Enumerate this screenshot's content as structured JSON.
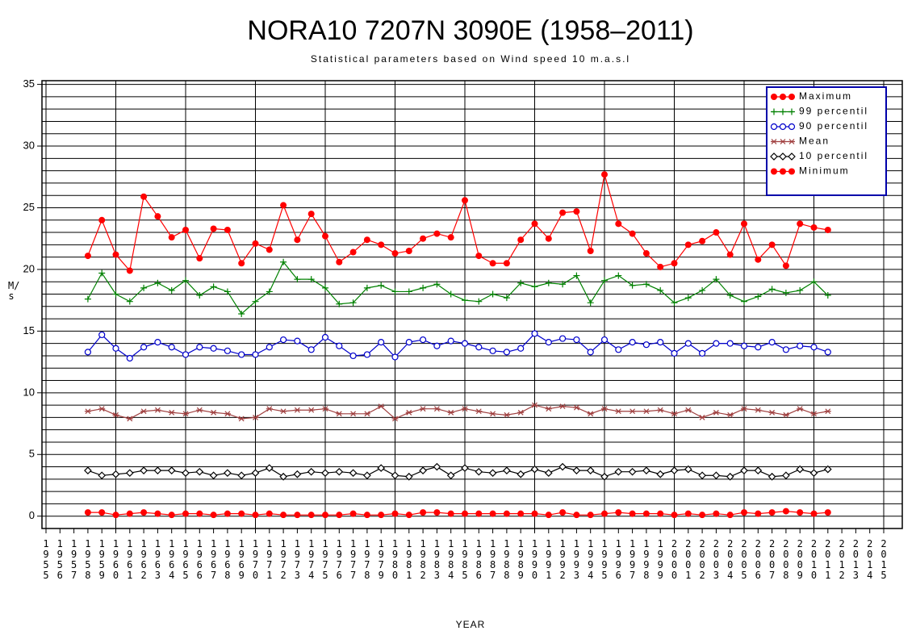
{
  "chart_data": {
    "type": "line",
    "title": "NORA10 7207N 3090E (1958–2011)",
    "subtitle": "Statistical parameters based on Wind speed 10 m.a.s.l",
    "x_label": "YEAR",
    "y_label": "M/s",
    "categories": [
      "1955",
      "1956",
      "1957",
      "1958",
      "1959",
      "1960",
      "1961",
      "1962",
      "1963",
      "1964",
      "1965",
      "1966",
      "1967",
      "1968",
      "1969",
      "1970",
      "1971",
      "1972",
      "1973",
      "1974",
      "1975",
      "1976",
      "1977",
      "1978",
      "1979",
      "1980",
      "1981",
      "1982",
      "1983",
      "1984",
      "1985",
      "1986",
      "1987",
      "1988",
      "1989",
      "1990",
      "1991",
      "1992",
      "1993",
      "1994",
      "1995",
      "1996",
      "1997",
      "1998",
      "1999",
      "2000",
      "2001",
      "2002",
      "2003",
      "2004",
      "2005",
      "2006",
      "2007",
      "2008",
      "2009",
      "2010",
      "2011",
      "2012",
      "2013",
      "2014",
      "2015"
    ],
    "ylim": [
      -1,
      35.3
    ],
    "yticks": [
      0,
      5,
      10,
      15,
      20,
      25,
      30,
      35
    ],
    "ygrid": [
      0,
      1,
      2,
      3,
      4,
      5,
      6,
      7,
      8,
      9,
      10,
      11,
      12,
      13,
      14,
      15,
      16,
      17,
      18,
      19,
      20,
      21,
      22,
      23,
      24,
      25,
      26,
      27,
      28,
      29,
      30,
      31,
      32,
      33,
      34,
      35
    ],
    "grid": true,
    "legend": "upper right",
    "series": [
      {
        "name": "Maximum",
        "color": "#ff0000",
        "marker": "dot",
        "values": [
          null,
          null,
          null,
          21.1,
          24.0,
          21.2,
          19.9,
          25.9,
          24.3,
          22.6,
          23.2,
          20.9,
          23.3,
          23.2,
          20.5,
          22.1,
          21.6,
          25.2,
          22.4,
          24.5,
          22.7,
          20.6,
          21.4,
          22.4,
          22.0,
          21.3,
          21.5,
          22.5,
          22.9,
          22.6,
          25.6,
          21.1,
          20.5,
          20.5,
          22.4,
          23.7,
          22.5,
          24.6,
          24.7,
          21.5,
          27.7,
          23.7,
          22.9,
          21.3,
          20.2,
          20.5,
          22.0,
          22.3,
          23.0,
          21.2,
          23.7,
          20.8,
          22.0,
          20.3,
          23.7,
          23.4,
          23.2,
          null,
          null,
          null,
          null
        ]
      },
      {
        "name": "99 percentil",
        "color": "#008000",
        "marker": "plus",
        "values": [
          null,
          null,
          null,
          17.6,
          19.7,
          18.0,
          17.4,
          18.5,
          18.9,
          18.3,
          19.1,
          17.9,
          18.6,
          18.2,
          16.4,
          17.4,
          18.2,
          20.6,
          19.2,
          19.2,
          18.5,
          17.2,
          17.3,
          18.5,
          18.7,
          18.2,
          18.2,
          18.5,
          18.8,
          18.0,
          17.5,
          17.4,
          18.0,
          17.7,
          18.9,
          18.6,
          18.9,
          18.8,
          19.5,
          17.3,
          19.1,
          19.5,
          18.7,
          18.8,
          18.3,
          17.3,
          17.7,
          18.3,
          19.2,
          17.9,
          17.4,
          17.8,
          18.4,
          18.1,
          18.3,
          19.0,
          17.9,
          null,
          null,
          null,
          null
        ]
      },
      {
        "name": "90 percentil",
        "color": "#0000cc",
        "marker": "ring",
        "values": [
          null,
          null,
          null,
          13.3,
          14.7,
          13.6,
          12.8,
          13.7,
          14.1,
          13.7,
          13.1,
          13.7,
          13.6,
          13.4,
          13.1,
          13.1,
          13.7,
          14.3,
          14.2,
          13.5,
          14.5,
          13.8,
          13.0,
          13.1,
          14.1,
          12.9,
          14.1,
          14.3,
          13.8,
          14.2,
          14.0,
          13.7,
          13.4,
          13.3,
          13.6,
          14.8,
          14.1,
          14.4,
          14.3,
          13.3,
          14.3,
          13.5,
          14.1,
          13.9,
          14.1,
          13.2,
          14.0,
          13.2,
          14.0,
          14.0,
          13.8,
          13.7,
          14.1,
          13.5,
          13.8,
          13.7,
          13.3,
          null,
          null,
          null,
          null
        ]
      },
      {
        "name": "Mean",
        "color": "#a04040",
        "marker": "star",
        "values": [
          null,
          null,
          null,
          8.5,
          8.7,
          8.2,
          7.9,
          8.5,
          8.6,
          8.4,
          8.3,
          8.6,
          8.4,
          8.3,
          7.9,
          8.0,
          8.7,
          8.5,
          8.6,
          8.6,
          8.7,
          8.3,
          8.3,
          8.3,
          8.9,
          7.9,
          8.4,
          8.7,
          8.7,
          8.4,
          8.7,
          8.5,
          8.3,
          8.2,
          8.4,
          9.0,
          8.7,
          8.9,
          8.8,
          8.3,
          8.7,
          8.5,
          8.5,
          8.5,
          8.6,
          8.3,
          8.6,
          8.0,
          8.4,
          8.2,
          8.7,
          8.6,
          8.4,
          8.2,
          8.7,
          8.3,
          8.5,
          null,
          null,
          null,
          null
        ]
      },
      {
        "name": "10 percentil",
        "color": "#000000",
        "marker": "diamond",
        "values": [
          null,
          null,
          null,
          3.7,
          3.3,
          3.4,
          3.5,
          3.7,
          3.7,
          3.7,
          3.5,
          3.6,
          3.3,
          3.5,
          3.3,
          3.5,
          3.9,
          3.2,
          3.4,
          3.6,
          3.5,
          3.6,
          3.5,
          3.3,
          3.9,
          3.3,
          3.2,
          3.7,
          4.0,
          3.3,
          3.9,
          3.6,
          3.5,
          3.7,
          3.4,
          3.8,
          3.5,
          4.0,
          3.7,
          3.7,
          3.2,
          3.6,
          3.6,
          3.7,
          3.4,
          3.7,
          3.8,
          3.3,
          3.3,
          3.2,
          3.7,
          3.7,
          3.2,
          3.3,
          3.8,
          3.5,
          3.8,
          null,
          null,
          null,
          null
        ]
      },
      {
        "name": "Minimum",
        "color": "#ff0000",
        "marker": "dot",
        "values": [
          null,
          null,
          null,
          0.3,
          0.3,
          0.1,
          0.2,
          0.3,
          0.2,
          0.1,
          0.2,
          0.2,
          0.1,
          0.2,
          0.2,
          0.1,
          0.2,
          0.1,
          0.1,
          0.1,
          0.1,
          0.1,
          0.2,
          0.1,
          0.1,
          0.2,
          0.1,
          0.3,
          0.3,
          0.2,
          0.2,
          0.2,
          0.2,
          0.2,
          0.2,
          0.2,
          0.1,
          0.3,
          0.1,
          0.1,
          0.2,
          0.3,
          0.2,
          0.2,
          0.2,
          0.1,
          0.2,
          0.1,
          0.2,
          0.1,
          0.3,
          0.2,
          0.3,
          0.4,
          0.3,
          0.2,
          0.3,
          null,
          null,
          null,
          null
        ]
      }
    ]
  }
}
